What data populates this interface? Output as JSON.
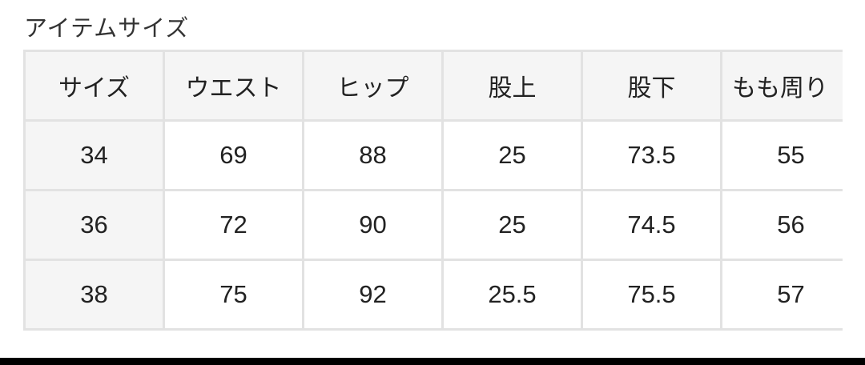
{
  "title": "アイテムサイズ",
  "table": {
    "headers": [
      "サイズ",
      "ウエスト",
      "ヒップ",
      "股上",
      "股下",
      "もも周り"
    ],
    "rows": [
      [
        "34",
        "69",
        "88",
        "25",
        "73.5",
        "55"
      ],
      [
        "36",
        "72",
        "90",
        "25",
        "74.5",
        "56"
      ],
      [
        "38",
        "75",
        "92",
        "25.5",
        "75.5",
        "57"
      ]
    ]
  }
}
